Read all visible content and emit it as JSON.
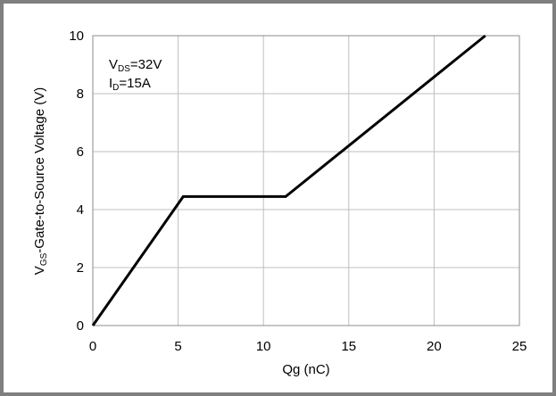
{
  "chart_data": {
    "type": "line",
    "xlabel": "Qg (nC)",
    "ylabel": {
      "main": "V",
      "sub": "GS",
      "rest": "-Gate-to-Source Voltage (V)"
    },
    "xlim": [
      0,
      25
    ],
    "ylim": [
      0,
      10
    ],
    "xticks": [
      "0",
      "5",
      "10",
      "15",
      "20",
      "25"
    ],
    "yticks": [
      "0",
      "2",
      "4",
      "6",
      "8",
      "10"
    ],
    "grid": true,
    "annotations": [
      {
        "main": "V",
        "sub": "DS",
        "rest": "=32V"
      },
      {
        "main": "I",
        "sub": "D",
        "rest": "=15A"
      }
    ],
    "series": [
      {
        "x": [
          0,
          5.3,
          11.3,
          23.0
        ],
        "y": [
          0,
          4.45,
          4.45,
          10.0
        ]
      }
    ]
  }
}
